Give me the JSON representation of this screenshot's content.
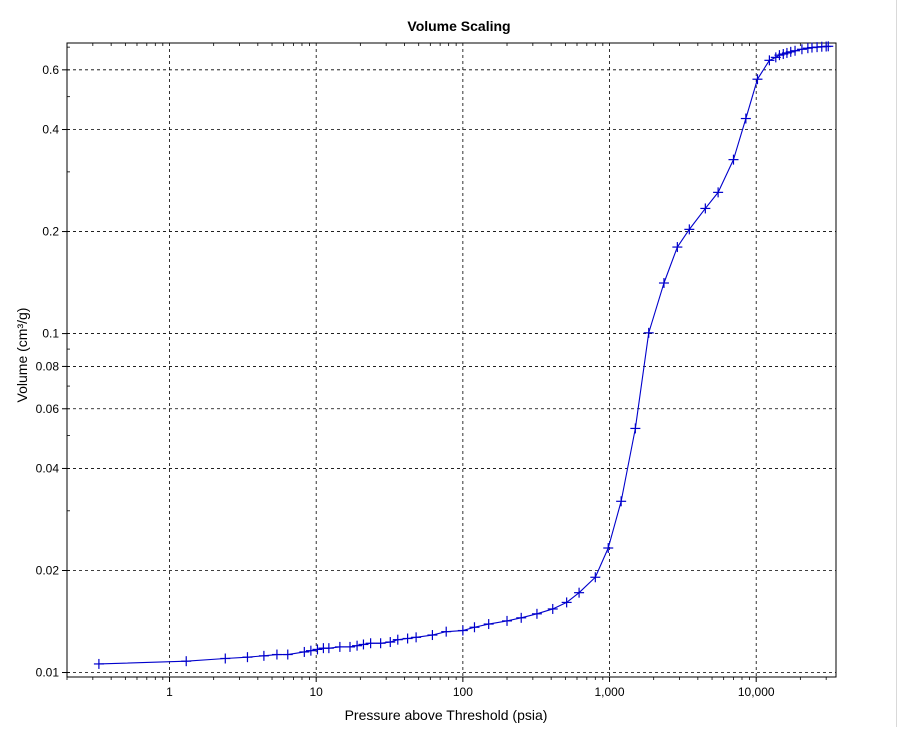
{
  "chart_data": {
    "type": "line",
    "title": "Volume Scaling",
    "xlabel": "Pressure above Threshold (psia)",
    "ylabel": "Volume (cm³/g)",
    "x_scale": "log",
    "y_scale": "log",
    "xlim": [
      0.2,
      35000
    ],
    "ylim": [
      0.0097,
      0.72
    ],
    "grid": true,
    "x_major_ticks": [
      {
        "value": 1,
        "label": "1"
      },
      {
        "value": 10,
        "label": "10"
      },
      {
        "value": 100,
        "label": "100"
      },
      {
        "value": 1000,
        "label": "1,000"
      },
      {
        "value": 10000,
        "label": "10,000"
      }
    ],
    "y_major_ticks": [
      {
        "value": 0.01,
        "label": "0.01"
      },
      {
        "value": 0.02,
        "label": "0.02"
      },
      {
        "value": 0.04,
        "label": "0.04"
      },
      {
        "value": 0.06,
        "label": "0.06"
      },
      {
        "value": 0.08,
        "label": "0.08"
      },
      {
        "value": 0.1,
        "label": "0.1"
      },
      {
        "value": 0.2,
        "label": "0.2"
      },
      {
        "value": 0.4,
        "label": "0.4"
      },
      {
        "value": 0.6,
        "label": "0.6"
      }
    ],
    "series_color": "#0000cc",
    "marker": "plus",
    "series": [
      {
        "x": [
          0.33,
          1.3,
          2.4,
          3.4,
          4.4,
          5.4,
          6.4,
          8.3,
          9.2,
          10.2,
          11.2,
          12.2,
          14.5,
          17,
          19,
          21,
          23.5,
          27.5,
          32,
          36,
          42,
          48,
          62,
          77,
          100,
          120,
          150,
          200,
          250,
          320,
          410,
          510,
          620,
          800,
          980,
          1200,
          1500,
          1850,
          2350,
          2900,
          3500,
          4500,
          5500,
          7000,
          8500,
          10200,
          12300,
          13600,
          14400,
          15300,
          16200,
          17200,
          18400,
          20500,
          22500,
          24000,
          26000,
          28000,
          30000,
          31000
        ],
        "y": [
          0.0106,
          0.0108,
          0.011,
          0.0111,
          0.0112,
          0.0113,
          0.0113,
          0.0115,
          0.0116,
          0.0117,
          0.0118,
          0.0118,
          0.0119,
          0.0119,
          0.012,
          0.0121,
          0.0122,
          0.0122,
          0.0123,
          0.0125,
          0.0126,
          0.0127,
          0.0129,
          0.0132,
          0.0133,
          0.0136,
          0.0139,
          0.0142,
          0.0145,
          0.0149,
          0.0154,
          0.0161,
          0.0172,
          0.0191,
          0.0233,
          0.032,
          0.0525,
          0.1005,
          0.141,
          0.18,
          0.203,
          0.234,
          0.261,
          0.326,
          0.431,
          0.563,
          0.64,
          0.653,
          0.663,
          0.668,
          0.673,
          0.678,
          0.683,
          0.69,
          0.695,
          0.698,
          0.7,
          0.702,
          0.703,
          0.704
        ]
      }
    ]
  }
}
